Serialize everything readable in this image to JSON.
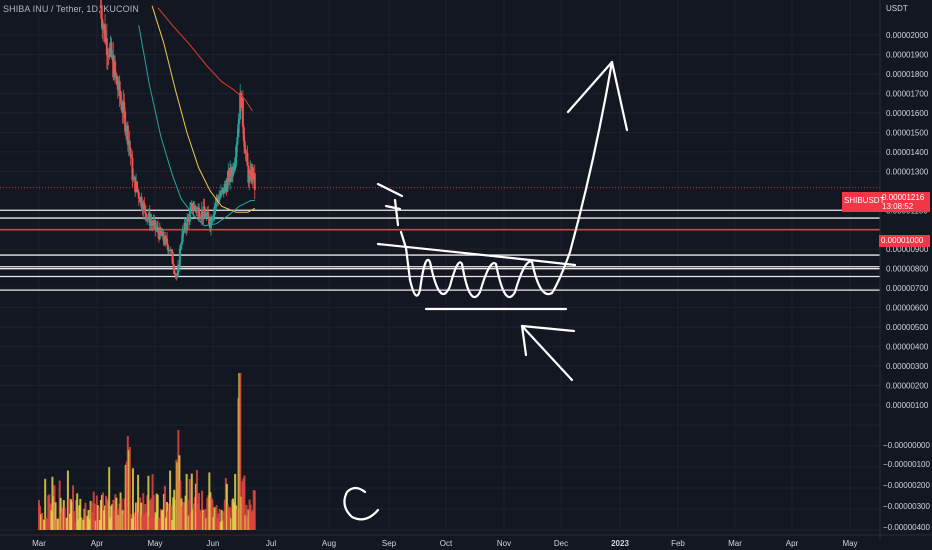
{
  "header": {
    "pair": "SHIBA INU / Tether",
    "interval": "1D",
    "exchange": "KUCOIN",
    "separator": ", "
  },
  "axis": {
    "currency": "USDT",
    "price_ticks": [
      "0.00002000",
      "0.00001900",
      "0.00001800",
      "0.00001700",
      "0.00001600",
      "0.00001500",
      "0.00001400",
      "0.00001300",
      "0.00001100",
      "0.00000900",
      "0.00000800",
      "0.00000700",
      "0.00000600",
      "0.00000500",
      "0.00000400",
      "0.00000300",
      "0.00000200",
      "0.00000100"
    ],
    "price_tick_values": [
      2e-05,
      1.9e-05,
      1.8e-05,
      1.7e-05,
      1.6e-05,
      1.5e-05,
      1.4e-05,
      1.3e-05,
      1.1e-05,
      9e-06,
      8e-06,
      7e-06,
      6e-06,
      5e-06,
      4e-06,
      3e-06,
      2e-06,
      1e-06
    ],
    "volume_ticks": [
      "−0.00000000",
      "−0.00000100",
      "−0.00000200",
      "−0.00000300",
      "−0.00000400"
    ],
    "time_ticks": [
      "Mar",
      "Apr",
      "May",
      "Jun",
      "Jul",
      "Aug",
      "Sep",
      "Oct",
      "Nov",
      "Dec",
      "2023",
      "Feb",
      "Mar",
      "Apr",
      "May"
    ],
    "time_tick_index": [
      0,
      1,
      2,
      3,
      4,
      5,
      6,
      7,
      8,
      9,
      10,
      11,
      12,
      13,
      14
    ]
  },
  "price_tag": {
    "symbol": "SHIBUSDT",
    "price": "0.00001216",
    "countdown": "13:08:52",
    "value": 1.216e-05
  },
  "resistance": {
    "label": "0.00001000",
    "value": 1e-05
  },
  "colors": {
    "background": "#131722",
    "grid": "#1e222d",
    "up": "#26a69a",
    "down": "#ef5350",
    "vol_up": "#e3d54b",
    "vol_down": "#e0493f",
    "ma_red": "#e53935",
    "ma_yellow": "#f2c94c",
    "ma_teal": "#26a69a",
    "tag_red": "#f23645",
    "drawing": "#ffffff"
  },
  "chart_data": {
    "type": "candlestick",
    "x_unit": "month",
    "y_unit": "USDT",
    "y_range": [
      1e-07,
      2.13e-05
    ],
    "horizontal_levels": [
      1.1e-05,
      1.06e-05,
      1e-05,
      8.7e-06,
      8.1e-06,
      8e-06,
      7.6e-06,
      6.9e-06
    ],
    "resistance_level": 1e-05,
    "last_price": 1.216e-05,
    "series": [
      {
        "kind": "ohlc",
        "start": 0,
        "end": 0.59,
        "path": [
          [
            1.06,
            2.15e-05
          ],
          [
            1.15,
            1.98e-05
          ],
          [
            1.25,
            1.88e-05
          ],
          [
            1.35,
            1.74e-05
          ],
          [
            1.45,
            1.61e-05
          ],
          [
            1.55,
            1.46e-05
          ],
          [
            1.62,
            1.26e-05
          ],
          [
            1.75,
            1.16e-05
          ],
          [
            1.85,
            1.08e-05
          ],
          [
            1.95,
            1.03e-05
          ],
          [
            2.05,
            9.9e-06
          ],
          [
            2.15,
            9.5e-06
          ],
          [
            2.25,
            9.1e-06
          ],
          [
            2.32,
            8.2e-06
          ],
          [
            2.38,
            7.4e-06
          ],
          [
            2.45,
            9.5e-06
          ],
          [
            2.55,
            1.04e-05
          ],
          [
            2.65,
            1.12e-05
          ],
          [
            2.75,
            1.1e-05
          ],
          [
            2.85,
            1.08e-05
          ],
          [
            2.95,
            1.04e-05
          ],
          [
            3.05,
            1.15e-05
          ],
          [
            3.15,
            1.18e-05
          ],
          [
            3.25,
            1.25e-05
          ],
          [
            3.35,
            1.32e-05
          ],
          [
            3.42,
            1.5e-05
          ],
          [
            3.48,
            1.7e-05
          ],
          [
            3.55,
            1.42e-05
          ],
          [
            3.62,
            1.25e-05
          ],
          [
            3.68,
            1.3e-05
          ],
          [
            3.72,
            1.22e-05
          ]
        ]
      },
      {
        "kind": "ma_red",
        "path": [
          [
            2.05,
            2.14e-05
          ],
          [
            2.3,
            2.05e-05
          ],
          [
            2.6,
            1.95e-05
          ],
          [
            2.9,
            1.84e-05
          ],
          [
            3.15,
            1.76e-05
          ],
          [
            3.35,
            1.72e-05
          ],
          [
            3.55,
            1.67e-05
          ],
          [
            3.68,
            1.61e-05
          ]
        ]
      },
      {
        "kind": "ma_yellow",
        "path": [
          [
            1.95,
            2.15e-05
          ],
          [
            2.15,
            1.96e-05
          ],
          [
            2.35,
            1.72e-05
          ],
          [
            2.55,
            1.5e-05
          ],
          [
            2.75,
            1.32e-05
          ],
          [
            2.95,
            1.2e-05
          ],
          [
            3.15,
            1.12e-05
          ],
          [
            3.4,
            1.09e-05
          ],
          [
            3.6,
            1.09e-05
          ],
          [
            3.72,
            1.11e-05
          ]
        ]
      },
      {
        "kind": "ma_teal",
        "path": [
          [
            1.72,
            2.05e-05
          ],
          [
            1.9,
            1.75e-05
          ],
          [
            2.1,
            1.48e-05
          ],
          [
            2.3,
            1.28e-05
          ],
          [
            2.45,
            1.16e-05
          ],
          [
            2.65,
            1.08e-05
          ],
          [
            2.85,
            1.02e-05
          ],
          [
            3.05,
            1.03e-05
          ],
          [
            3.25,
            1.07e-05
          ],
          [
            3.45,
            1.12e-05
          ],
          [
            3.65,
            1.15e-05
          ],
          [
            3.72,
            1.15e-05
          ]
        ]
      }
    ]
  }
}
